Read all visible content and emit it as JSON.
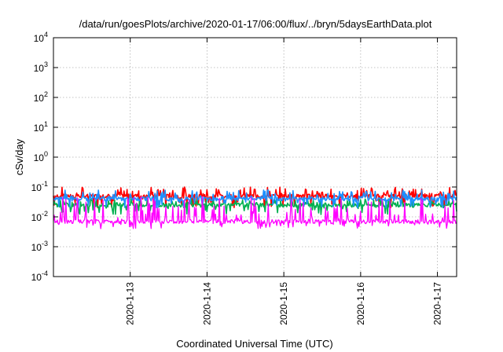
{
  "chart_data": {
    "type": "line",
    "title": "/data/run/goesPlots/archive/2020-01-17/06:00/flux/../bryn/5daysEarthData.plot",
    "xlabel": "Coordinated Universal Time (UTC)",
    "ylabel": "cSv/day",
    "yscale": "log",
    "ylim": [
      0.0001,
      10000
    ],
    "xlim": [
      "2020-01-12 00:00",
      "2020-01-17 06:00"
    ],
    "x_ticks": [
      "2020-1-13",
      "2020-1-14",
      "2020-1-15",
      "2020-1-16",
      "2020-1-17"
    ],
    "y_ticks": [
      {
        "base": "10",
        "exp": "4"
      },
      {
        "base": "10",
        "exp": "3"
      },
      {
        "base": "10",
        "exp": "2"
      },
      {
        "base": "10",
        "exp": "1"
      },
      {
        "base": "10",
        "exp": "0"
      },
      {
        "base": "10",
        "exp": "-1"
      },
      {
        "base": "10",
        "exp": "-2"
      },
      {
        "base": "10",
        "exp": "-3"
      },
      {
        "base": "10",
        "exp": "-4"
      }
    ],
    "grid": true,
    "legend": "none",
    "series": [
      {
        "color": "#ff0000",
        "baseline": 0.05,
        "spike_max": 0.1,
        "dip_min": 0.02
      },
      {
        "color": "#00b050",
        "baseline": 0.025,
        "spike_max": 0.04,
        "dip_min": 0.012
      },
      {
        "color": "#1e90ff",
        "baseline": 0.04,
        "spike_max": 0.08,
        "dip_min": 0.02
      },
      {
        "color": "#ff00ff",
        "baseline": 0.007,
        "spike_max": 0.05,
        "dip_min": 0.004
      }
    ]
  }
}
